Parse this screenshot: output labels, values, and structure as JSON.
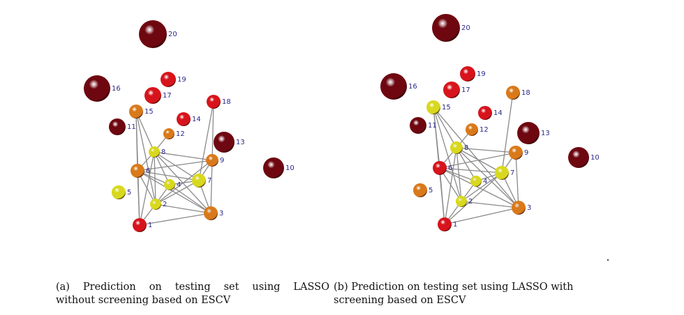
{
  "colors": {
    "dark_red": "#6e0710",
    "red": "#d7141c",
    "orange": "#d9791a",
    "yellow": "#d8d81e",
    "edge": "#8a8a8a",
    "label": "#2a2a8a"
  },
  "panels": [
    {
      "nodes": [
        {
          "id": "1",
          "color": "red"
        },
        {
          "id": "2",
          "color": "yellow"
        },
        {
          "id": "3",
          "color": "orange"
        },
        {
          "id": "4",
          "color": "yellow"
        },
        {
          "id": "5",
          "color": "yellow"
        },
        {
          "id": "6",
          "color": "orange"
        },
        {
          "id": "7",
          "color": "yellow"
        },
        {
          "id": "8",
          "color": "yellow"
        },
        {
          "id": "9",
          "color": "orange"
        },
        {
          "id": "10",
          "color": "dark_red"
        },
        {
          "id": "11",
          "color": "dark_red"
        },
        {
          "id": "12",
          "color": "orange"
        },
        {
          "id": "13",
          "color": "dark_red"
        },
        {
          "id": "14",
          "color": "red"
        },
        {
          "id": "15",
          "color": "orange"
        },
        {
          "id": "16",
          "color": "dark_red"
        },
        {
          "id": "17",
          "color": "red"
        },
        {
          "id": "18",
          "color": "red"
        },
        {
          "id": "19",
          "color": "red"
        },
        {
          "id": "20",
          "color": "dark_red"
        }
      ],
      "edges": [
        [
          "1",
          "2"
        ],
        [
          "1",
          "3"
        ],
        [
          "1",
          "6"
        ],
        [
          "1",
          "8"
        ],
        [
          "2",
          "3"
        ],
        [
          "2",
          "4"
        ],
        [
          "2",
          "6"
        ],
        [
          "2",
          "7"
        ],
        [
          "2",
          "8"
        ],
        [
          "2",
          "9"
        ],
        [
          "3",
          "4"
        ],
        [
          "3",
          "6"
        ],
        [
          "3",
          "7"
        ],
        [
          "3",
          "8"
        ],
        [
          "3",
          "9"
        ],
        [
          "4",
          "6"
        ],
        [
          "4",
          "7"
        ],
        [
          "4",
          "8"
        ],
        [
          "6",
          "7"
        ],
        [
          "6",
          "8"
        ],
        [
          "6",
          "9"
        ],
        [
          "6",
          "15"
        ],
        [
          "7",
          "8"
        ],
        [
          "7",
          "9"
        ],
        [
          "7",
          "18"
        ],
        [
          "8",
          "9"
        ],
        [
          "8",
          "12"
        ],
        [
          "8",
          "15"
        ],
        [
          "9",
          "18"
        ],
        [
          "15",
          "1"
        ],
        [
          "15",
          "2"
        ]
      ],
      "caption_lines": [
        "(a) Prediction on testing set using LASSO",
        "without screening based on ESCV"
      ]
    },
    {
      "nodes": [
        {
          "id": "1",
          "color": "red"
        },
        {
          "id": "2",
          "color": "yellow"
        },
        {
          "id": "3",
          "color": "orange"
        },
        {
          "id": "4",
          "color": "yellow"
        },
        {
          "id": "5",
          "color": "orange"
        },
        {
          "id": "6",
          "color": "red"
        },
        {
          "id": "7",
          "color": "yellow"
        },
        {
          "id": "8",
          "color": "yellow"
        },
        {
          "id": "9",
          "color": "orange"
        },
        {
          "id": "10",
          "color": "dark_red"
        },
        {
          "id": "11",
          "color": "dark_red"
        },
        {
          "id": "12",
          "color": "orange"
        },
        {
          "id": "13",
          "color": "dark_red"
        },
        {
          "id": "14",
          "color": "red"
        },
        {
          "id": "15",
          "color": "yellow"
        },
        {
          "id": "16",
          "color": "dark_red"
        },
        {
          "id": "17",
          "color": "red"
        },
        {
          "id": "18",
          "color": "orange"
        },
        {
          "id": "19",
          "color": "red"
        },
        {
          "id": "20",
          "color": "dark_red"
        }
      ],
      "edges": [
        [
          "1",
          "2"
        ],
        [
          "1",
          "3"
        ],
        [
          "1",
          "6"
        ],
        [
          "1",
          "8"
        ],
        [
          "1",
          "7"
        ],
        [
          "2",
          "3"
        ],
        [
          "2",
          "4"
        ],
        [
          "2",
          "6"
        ],
        [
          "2",
          "7"
        ],
        [
          "2",
          "8"
        ],
        [
          "3",
          "6"
        ],
        [
          "3",
          "7"
        ],
        [
          "3",
          "8"
        ],
        [
          "3",
          "9"
        ],
        [
          "4",
          "6"
        ],
        [
          "4",
          "7"
        ],
        [
          "4",
          "8"
        ],
        [
          "6",
          "7"
        ],
        [
          "6",
          "8"
        ],
        [
          "6",
          "15"
        ],
        [
          "6",
          "9"
        ],
        [
          "7",
          "8"
        ],
        [
          "7",
          "9"
        ],
        [
          "7",
          "18"
        ],
        [
          "8",
          "9"
        ],
        [
          "8",
          "12"
        ],
        [
          "8",
          "15"
        ],
        [
          "15",
          "1"
        ],
        [
          "15",
          "2"
        ],
        [
          "15",
          "3"
        ]
      ],
      "caption_lines": [
        "(b) Prediction on testing set using LASSO with",
        "screening based on ESCV"
      ]
    }
  ]
}
